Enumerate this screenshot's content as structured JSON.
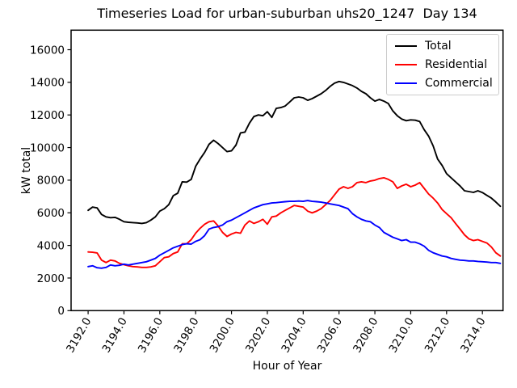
{
  "figure": {
    "background": "#ffffff",
    "text_color": "#000000",
    "spine_color": "#000000"
  },
  "chart_data": {
    "type": "line",
    "title": "Timeseries Load for urban-suburban uhs20_1247  Day 134",
    "xlabel": "Hour of Year",
    "ylabel": "kW total",
    "grid": false,
    "legend_position": "upper-right",
    "xlim": [
      3191.05,
      3215.15
    ],
    "ylim": [
      0,
      17200
    ],
    "x_ticks": [
      3192,
      3194,
      3196,
      3198,
      3200,
      3202,
      3204,
      3206,
      3208,
      3210,
      3212,
      3214
    ],
    "x_tick_labels": [
      "3192.0",
      "3194.0",
      "3196.0",
      "3198.0",
      "3200.0",
      "3202.0",
      "3204.0",
      "3206.0",
      "3208.0",
      "3210.0",
      "3212.0",
      "3214.0"
    ],
    "x_tick_rotation_deg": 60,
    "y_ticks": [
      0,
      2000,
      4000,
      6000,
      8000,
      10000,
      12000,
      14000,
      16000
    ],
    "series": [
      {
        "name": "Total",
        "color": "#000000",
        "points": [
          [
            3192,
            6150
          ],
          [
            3192.25,
            6350
          ],
          [
            3192.5,
            6300
          ],
          [
            3192.75,
            5900
          ],
          [
            3193,
            5750
          ],
          [
            3193.25,
            5700
          ],
          [
            3193.5,
            5720
          ],
          [
            3193.75,
            5600
          ],
          [
            3194,
            5450
          ],
          [
            3194.25,
            5420
          ],
          [
            3194.5,
            5400
          ],
          [
            3194.75,
            5380
          ],
          [
            3195,
            5350
          ],
          [
            3195.25,
            5400
          ],
          [
            3195.5,
            5550
          ],
          [
            3195.75,
            5750
          ],
          [
            3196,
            6100
          ],
          [
            3196.25,
            6250
          ],
          [
            3196.5,
            6500
          ],
          [
            3196.75,
            7050
          ],
          [
            3197,
            7200
          ],
          [
            3197.25,
            7900
          ],
          [
            3197.5,
            7880
          ],
          [
            3197.75,
            8050
          ],
          [
            3198,
            8850
          ],
          [
            3198.25,
            9300
          ],
          [
            3198.5,
            9700
          ],
          [
            3198.75,
            10200
          ],
          [
            3199,
            10450
          ],
          [
            3199.25,
            10250
          ],
          [
            3199.5,
            10000
          ],
          [
            3199.75,
            9750
          ],
          [
            3200,
            9800
          ],
          [
            3200.25,
            10150
          ],
          [
            3200.5,
            10900
          ],
          [
            3200.75,
            10950
          ],
          [
            3201,
            11500
          ],
          [
            3201.25,
            11900
          ],
          [
            3201.5,
            12000
          ],
          [
            3201.75,
            11950
          ],
          [
            3202,
            12200
          ],
          [
            3202.25,
            11850
          ],
          [
            3202.5,
            12400
          ],
          [
            3202.75,
            12450
          ],
          [
            3203,
            12550
          ],
          [
            3203.25,
            12800
          ],
          [
            3203.5,
            13050
          ],
          [
            3203.75,
            13100
          ],
          [
            3204,
            13050
          ],
          [
            3204.25,
            12900
          ],
          [
            3204.5,
            13000
          ],
          [
            3204.75,
            13150
          ],
          [
            3205,
            13300
          ],
          [
            3205.25,
            13500
          ],
          [
            3205.5,
            13750
          ],
          [
            3205.75,
            13950
          ],
          [
            3206,
            14050
          ],
          [
            3206.25,
            14000
          ],
          [
            3206.5,
            13900
          ],
          [
            3206.75,
            13800
          ],
          [
            3207,
            13650
          ],
          [
            3207.25,
            13450
          ],
          [
            3207.5,
            13300
          ],
          [
            3207.75,
            13050
          ],
          [
            3208,
            12850
          ],
          [
            3208.25,
            12950
          ],
          [
            3208.5,
            12850
          ],
          [
            3208.75,
            12700
          ],
          [
            3209,
            12250
          ],
          [
            3209.25,
            11950
          ],
          [
            3209.5,
            11750
          ],
          [
            3209.75,
            11650
          ],
          [
            3210,
            11700
          ],
          [
            3210.25,
            11680
          ],
          [
            3210.5,
            11600
          ],
          [
            3210.75,
            11100
          ],
          [
            3211,
            10700
          ],
          [
            3211.25,
            10100
          ],
          [
            3211.5,
            9300
          ],
          [
            3211.75,
            8900
          ],
          [
            3212,
            8400
          ],
          [
            3212.25,
            8150
          ],
          [
            3212.5,
            7900
          ],
          [
            3212.75,
            7650
          ],
          [
            3213,
            7350
          ],
          [
            3213.25,
            7300
          ],
          [
            3213.5,
            7250
          ],
          [
            3213.75,
            7350
          ],
          [
            3214,
            7240
          ],
          [
            3214.25,
            7070
          ],
          [
            3214.5,
            6900
          ],
          [
            3214.75,
            6660
          ],
          [
            3215,
            6400
          ]
        ]
      },
      {
        "name": "Residential",
        "color": "#ff0000",
        "points": [
          [
            3192,
            3600
          ],
          [
            3192.25,
            3580
          ],
          [
            3192.5,
            3540
          ],
          [
            3192.75,
            3100
          ],
          [
            3193,
            2950
          ],
          [
            3193.25,
            3100
          ],
          [
            3193.5,
            3050
          ],
          [
            3193.75,
            2900
          ],
          [
            3194,
            2820
          ],
          [
            3194.25,
            2750
          ],
          [
            3194.5,
            2700
          ],
          [
            3194.75,
            2680
          ],
          [
            3195,
            2650
          ],
          [
            3195.25,
            2650
          ],
          [
            3195.5,
            2680
          ],
          [
            3195.75,
            2750
          ],
          [
            3196,
            3000
          ],
          [
            3196.25,
            3250
          ],
          [
            3196.5,
            3300
          ],
          [
            3196.75,
            3500
          ],
          [
            3197,
            3600
          ],
          [
            3197.25,
            4100
          ],
          [
            3197.5,
            4100
          ],
          [
            3197.75,
            4350
          ],
          [
            3198,
            4750
          ],
          [
            3198.25,
            5050
          ],
          [
            3198.5,
            5300
          ],
          [
            3198.75,
            5450
          ],
          [
            3199,
            5500
          ],
          [
            3199.25,
            5200
          ],
          [
            3199.5,
            4800
          ],
          [
            3199.75,
            4550
          ],
          [
            3200,
            4700
          ],
          [
            3200.25,
            4800
          ],
          [
            3200.5,
            4750
          ],
          [
            3200.75,
            5250
          ],
          [
            3201,
            5500
          ],
          [
            3201.25,
            5350
          ],
          [
            3201.5,
            5450
          ],
          [
            3201.75,
            5600
          ],
          [
            3202,
            5300
          ],
          [
            3202.25,
            5750
          ],
          [
            3202.5,
            5800
          ],
          [
            3202.75,
            6000
          ],
          [
            3203,
            6150
          ],
          [
            3203.25,
            6300
          ],
          [
            3203.5,
            6450
          ],
          [
            3203.75,
            6400
          ],
          [
            3204,
            6350
          ],
          [
            3204.25,
            6100
          ],
          [
            3204.5,
            6000
          ],
          [
            3204.75,
            6100
          ],
          [
            3205,
            6250
          ],
          [
            3205.25,
            6500
          ],
          [
            3205.5,
            6750
          ],
          [
            3205.75,
            7100
          ],
          [
            3206,
            7450
          ],
          [
            3206.25,
            7600
          ],
          [
            3206.5,
            7500
          ],
          [
            3206.75,
            7600
          ],
          [
            3207,
            7850
          ],
          [
            3207.25,
            7900
          ],
          [
            3207.5,
            7850
          ],
          [
            3207.75,
            7950
          ],
          [
            3208,
            8000
          ],
          [
            3208.25,
            8100
          ],
          [
            3208.5,
            8150
          ],
          [
            3208.75,
            8050
          ],
          [
            3209,
            7900
          ],
          [
            3209.25,
            7500
          ],
          [
            3209.5,
            7650
          ],
          [
            3209.75,
            7750
          ],
          [
            3210,
            7600
          ],
          [
            3210.25,
            7700
          ],
          [
            3210.5,
            7850
          ],
          [
            3210.75,
            7500
          ],
          [
            3211,
            7150
          ],
          [
            3211.25,
            6900
          ],
          [
            3211.5,
            6600
          ],
          [
            3211.75,
            6200
          ],
          [
            3212,
            5950
          ],
          [
            3212.25,
            5700
          ],
          [
            3212.5,
            5350
          ],
          [
            3212.75,
            5000
          ],
          [
            3213,
            4650
          ],
          [
            3213.25,
            4400
          ],
          [
            3213.5,
            4300
          ],
          [
            3213.75,
            4350
          ],
          [
            3214,
            4250
          ],
          [
            3214.25,
            4150
          ],
          [
            3214.5,
            3900
          ],
          [
            3214.75,
            3550
          ],
          [
            3215,
            3350
          ]
        ]
      },
      {
        "name": "Commercial",
        "color": "#0000ff",
        "points": [
          [
            3192,
            2700
          ],
          [
            3192.25,
            2750
          ],
          [
            3192.5,
            2630
          ],
          [
            3192.75,
            2600
          ],
          [
            3193,
            2650
          ],
          [
            3193.25,
            2800
          ],
          [
            3193.5,
            2750
          ],
          [
            3193.75,
            2780
          ],
          [
            3194,
            2850
          ],
          [
            3194.25,
            2800
          ],
          [
            3194.5,
            2850
          ],
          [
            3194.75,
            2900
          ],
          [
            3195,
            2950
          ],
          [
            3195.25,
            3000
          ],
          [
            3195.5,
            3100
          ],
          [
            3195.75,
            3200
          ],
          [
            3196,
            3400
          ],
          [
            3196.25,
            3550
          ],
          [
            3196.5,
            3700
          ],
          [
            3196.75,
            3850
          ],
          [
            3197,
            3950
          ],
          [
            3197.25,
            4050
          ],
          [
            3197.5,
            4100
          ],
          [
            3197.75,
            4080
          ],
          [
            3198,
            4250
          ],
          [
            3198.25,
            4350
          ],
          [
            3198.5,
            4600
          ],
          [
            3198.75,
            5000
          ],
          [
            3199,
            5100
          ],
          [
            3199.25,
            5150
          ],
          [
            3199.5,
            5250
          ],
          [
            3199.75,
            5450
          ],
          [
            3200,
            5550
          ],
          [
            3200.25,
            5700
          ],
          [
            3200.5,
            5850
          ],
          [
            3200.75,
            6000
          ],
          [
            3201,
            6150
          ],
          [
            3201.25,
            6300
          ],
          [
            3201.5,
            6400
          ],
          [
            3201.75,
            6500
          ],
          [
            3202,
            6550
          ],
          [
            3202.25,
            6600
          ],
          [
            3202.5,
            6620
          ],
          [
            3202.75,
            6650
          ],
          [
            3203,
            6680
          ],
          [
            3203.25,
            6700
          ],
          [
            3203.5,
            6700
          ],
          [
            3203.75,
            6720
          ],
          [
            3204,
            6700
          ],
          [
            3204.25,
            6750
          ],
          [
            3204.5,
            6700
          ],
          [
            3204.75,
            6680
          ],
          [
            3205,
            6650
          ],
          [
            3205.25,
            6600
          ],
          [
            3205.5,
            6550
          ],
          [
            3205.75,
            6500
          ],
          [
            3206,
            6450
          ],
          [
            3206.25,
            6350
          ],
          [
            3206.5,
            6250
          ],
          [
            3206.75,
            5950
          ],
          [
            3207,
            5750
          ],
          [
            3207.25,
            5600
          ],
          [
            3207.5,
            5500
          ],
          [
            3207.75,
            5450
          ],
          [
            3208,
            5250
          ],
          [
            3208.25,
            5100
          ],
          [
            3208.5,
            4800
          ],
          [
            3208.75,
            4650
          ],
          [
            3209,
            4500
          ],
          [
            3209.25,
            4400
          ],
          [
            3209.5,
            4300
          ],
          [
            3209.75,
            4350
          ],
          [
            3210,
            4200
          ],
          [
            3210.25,
            4200
          ],
          [
            3210.5,
            4100
          ],
          [
            3210.75,
            3950
          ],
          [
            3211,
            3700
          ],
          [
            3211.25,
            3550
          ],
          [
            3211.5,
            3450
          ],
          [
            3211.75,
            3350
          ],
          [
            3212,
            3300
          ],
          [
            3212.25,
            3200
          ],
          [
            3212.5,
            3150
          ],
          [
            3212.75,
            3100
          ],
          [
            3213,
            3080
          ],
          [
            3213.25,
            3050
          ],
          [
            3213.5,
            3050
          ],
          [
            3213.75,
            3020
          ],
          [
            3214,
            3000
          ],
          [
            3214.25,
            2980
          ],
          [
            3214.5,
            2950
          ],
          [
            3214.75,
            2950
          ],
          [
            3215,
            2900
          ]
        ]
      }
    ]
  }
}
